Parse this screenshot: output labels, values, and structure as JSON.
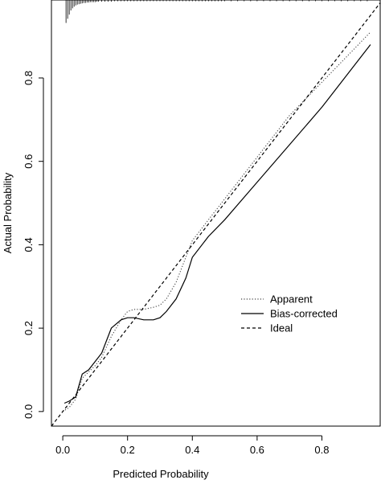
{
  "chart_data": {
    "type": "line",
    "title": "",
    "xlabel": "Predicted Probability",
    "ylabel": "Actual Probability",
    "xlim": [
      -0.035,
      0.98
    ],
    "ylim": [
      -0.035,
      0.987
    ],
    "x_ticks": [
      0.0,
      0.2,
      0.4,
      0.6,
      0.8
    ],
    "y_ticks": [
      0.0,
      0.2,
      0.4,
      0.6,
      0.8
    ],
    "x_tick_labels": [
      "0.0",
      "0.2",
      "0.4",
      "0.6",
      "0.8"
    ],
    "y_tick_labels": [
      "0.0",
      "0.2",
      "0.4",
      "0.6",
      "0.8"
    ],
    "grid": false,
    "legend_position": "right",
    "series": [
      {
        "name": "Apparent",
        "style": "dotted",
        "color": "#444444",
        "x": [
          0.0,
          0.02,
          0.04,
          0.06,
          0.08,
          0.1,
          0.12,
          0.15,
          0.18,
          0.2,
          0.22,
          0.25,
          0.28,
          0.3,
          0.32,
          0.35,
          0.38,
          0.4,
          0.45,
          0.5,
          0.6,
          0.7,
          0.8,
          0.9,
          0.95
        ],
        "y": [
          0.0,
          0.01,
          0.03,
          0.08,
          0.095,
          0.11,
          0.13,
          0.18,
          0.22,
          0.24,
          0.245,
          0.245,
          0.25,
          0.255,
          0.27,
          0.31,
          0.37,
          0.41,
          0.46,
          0.51,
          0.61,
          0.71,
          0.79,
          0.87,
          0.91
        ]
      },
      {
        "name": "Bias-corrected",
        "style": "solid",
        "color": "#000000",
        "x": [
          0.005,
          0.02,
          0.04,
          0.06,
          0.08,
          0.1,
          0.12,
          0.15,
          0.18,
          0.2,
          0.22,
          0.25,
          0.28,
          0.3,
          0.32,
          0.35,
          0.38,
          0.4,
          0.45,
          0.5,
          0.6,
          0.7,
          0.8,
          0.9,
          0.95
        ],
        "y": [
          0.02,
          0.025,
          0.035,
          0.09,
          0.1,
          0.12,
          0.14,
          0.2,
          0.22,
          0.225,
          0.225,
          0.22,
          0.22,
          0.225,
          0.24,
          0.27,
          0.32,
          0.37,
          0.42,
          0.46,
          0.55,
          0.64,
          0.73,
          0.83,
          0.88
        ]
      },
      {
        "name": "Ideal",
        "style": "dashed",
        "color": "#000000",
        "x": [
          -0.035,
          0.98
        ],
        "y": [
          -0.035,
          0.98
        ]
      }
    ],
    "rug_x": [
      0.01,
      0.015,
      0.02,
      0.025,
      0.03,
      0.035,
      0.04,
      0.045,
      0.05,
      0.055,
      0.06,
      0.065,
      0.07,
      0.075,
      0.08,
      0.085,
      0.09,
      0.095,
      0.1,
      0.105,
      0.11,
      0.12,
      0.13,
      0.14,
      0.15,
      0.16,
      0.17,
      0.18,
      0.19,
      0.2,
      0.21,
      0.22,
      0.23,
      0.24,
      0.25,
      0.26,
      0.27,
      0.28,
      0.29,
      0.3,
      0.31,
      0.32,
      0.33,
      0.34,
      0.35,
      0.36,
      0.37,
      0.38,
      0.39,
      0.4,
      0.41,
      0.42,
      0.43,
      0.44,
      0.45,
      0.46,
      0.47,
      0.48,
      0.49,
      0.5,
      0.52,
      0.54,
      0.56,
      0.58,
      0.6,
      0.62,
      0.64,
      0.66,
      0.68,
      0.7,
      0.72,
      0.74,
      0.76,
      0.78,
      0.8,
      0.82,
      0.84,
      0.86,
      0.88,
      0.9,
      0.92,
      0.94
    ],
    "rug_heights": [
      0.055,
      0.045,
      0.035,
      0.025,
      0.02,
      0.016,
      0.013,
      0.011,
      0.01,
      0.009,
      0.008,
      0.007,
      0.007,
      0.006,
      0.006,
      0.005,
      0.005,
      0.005,
      0.005,
      0.004,
      0.004,
      0.004,
      0.004,
      0.004,
      0.004,
      0.003,
      0.003,
      0.003,
      0.003,
      0.003,
      0.003,
      0.003,
      0.003,
      0.003,
      0.003,
      0.003,
      0.003,
      0.003,
      0.003,
      0.003,
      0.003,
      0.003,
      0.003,
      0.003,
      0.003,
      0.003,
      0.003,
      0.003,
      0.003,
      0.003,
      0.003,
      0.003,
      0.003,
      0.003,
      0.003,
      0.003,
      0.003,
      0.003,
      0.003,
      0.003,
      0.003,
      0.003,
      0.003,
      0.003,
      0.003,
      0.003,
      0.003,
      0.003,
      0.003,
      0.003,
      0.003,
      0.003,
      0.003,
      0.003,
      0.003,
      0.003,
      0.003,
      0.003,
      0.003,
      0.003,
      0.003,
      0.003
    ]
  }
}
